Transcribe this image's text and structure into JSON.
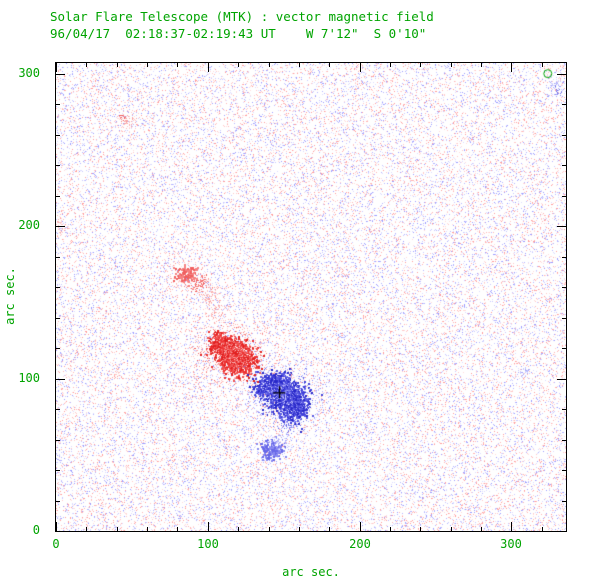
{
  "chart_data": {
    "type": "scatter",
    "title": "Solar Flare Telescope (MTK) : vector magnetic field",
    "subtitle": "96/04/17  02:18:37-02:19:43 UT    W 7'12\"  S 0'10\"",
    "xlabel": "arc sec.",
    "ylabel": "arc sec.",
    "xlim": [
      0,
      336
    ],
    "ylim": [
      0,
      307
    ],
    "xticks": [
      0,
      100,
      200,
      300
    ],
    "yticks": [
      0,
      100,
      200,
      300
    ],
    "minor_tick_interval": 20,
    "grid": false,
    "legend": "none",
    "text_color": "#00a400",
    "axis_color": "#000000",
    "seed": 19960417,
    "noise": {
      "count": 42000,
      "red_fraction": 0.5,
      "red_palette": [
        "#ffd9d9",
        "#ffc6c6",
        "#ffb2b2",
        "#ff9a9a"
      ],
      "blue_palette": [
        "#d9d9ff",
        "#c6c6ff",
        "#b2b2ff",
        "#9a9aff"
      ]
    },
    "palettes": {
      "red_strong": [
        "#e02020",
        "#ee3333",
        "#f05050"
      ],
      "red_medium": [
        "#f06060",
        "#f58282"
      ],
      "red_soft": [
        "#f8a2a2",
        "#fbc2c2"
      ],
      "blue_strong": [
        "#2828c8",
        "#4040d8",
        "#5858e0"
      ],
      "blue_medium": [
        "#6868e8",
        "#8888f0"
      ],
      "blue_soft": [
        "#a8a8f8",
        "#c6c6fb"
      ]
    },
    "clusters": [
      {
        "palette": "red_strong",
        "x": 113,
        "y": 119,
        "sx": 5,
        "sy": 4,
        "count": 500,
        "dot": 2
      },
      {
        "palette": "red_strong",
        "x": 120,
        "y": 112,
        "sx": 6,
        "sy": 5,
        "count": 600,
        "dot": 2
      },
      {
        "palette": "red_strong",
        "x": 107,
        "y": 125,
        "sx": 3,
        "sy": 3,
        "count": 120,
        "dot": 2
      },
      {
        "palette": "red_medium",
        "x": 116,
        "y": 116,
        "sx": 10,
        "sy": 8,
        "count": 350,
        "dot": 1
      },
      {
        "palette": "red_soft",
        "x": 116,
        "y": 116,
        "sx": 16,
        "sy": 12,
        "count": 300,
        "dot": 1
      },
      {
        "palette": "red_medium",
        "x": 86,
        "y": 168,
        "sx": 4,
        "sy": 3,
        "count": 110,
        "dot": 2
      },
      {
        "palette": "red_medium",
        "x": 94,
        "y": 162,
        "sx": 4,
        "sy": 3,
        "count": 90,
        "dot": 1
      },
      {
        "palette": "red_soft",
        "x": 101,
        "y": 155,
        "sx": 3,
        "sy": 4,
        "count": 70,
        "dot": 1
      },
      {
        "palette": "red_soft",
        "x": 106,
        "y": 146,
        "sx": 3,
        "sy": 4,
        "count": 50,
        "dot": 1
      },
      {
        "palette": "red_soft",
        "x": 48,
        "y": 268,
        "sx": 3,
        "sy": 2,
        "count": 45,
        "dot": 1
      },
      {
        "palette": "red_medium",
        "x": 44,
        "y": 271,
        "sx": 1.5,
        "sy": 1.5,
        "count": 20,
        "dot": 1
      },
      {
        "palette": "red_soft",
        "x": 3,
        "y": 199,
        "sx": 2,
        "sy": 3,
        "count": 35,
        "dot": 1
      },
      {
        "palette": "red_soft",
        "x": 40,
        "y": 103,
        "sx": 2,
        "sy": 2,
        "count": 18,
        "dot": 1
      },
      {
        "palette": "blue_strong",
        "x": 143,
        "y": 95,
        "sx": 6,
        "sy": 4,
        "count": 550,
        "dot": 2
      },
      {
        "palette": "blue_strong",
        "x": 151,
        "y": 88,
        "sx": 6,
        "sy": 5,
        "count": 600,
        "dot": 2
      },
      {
        "palette": "blue_strong",
        "x": 158,
        "y": 81,
        "sx": 4,
        "sy": 4,
        "count": 250,
        "dot": 2
      },
      {
        "palette": "blue_medium",
        "x": 150,
        "y": 90,
        "sx": 10,
        "sy": 8,
        "count": 350,
        "dot": 1
      },
      {
        "palette": "blue_soft",
        "x": 150,
        "y": 88,
        "sx": 15,
        "sy": 11,
        "count": 300,
        "dot": 1
      },
      {
        "palette": "blue_medium",
        "x": 153,
        "y": 73,
        "sx": 4,
        "sy": 4,
        "count": 120,
        "dot": 1
      },
      {
        "palette": "blue_medium",
        "x": 142,
        "y": 53,
        "sx": 4,
        "sy": 3,
        "count": 140,
        "dot": 2
      },
      {
        "palette": "blue_soft",
        "x": 146,
        "y": 58,
        "sx": 3,
        "sy": 3,
        "count": 70,
        "dot": 1
      },
      {
        "palette": "blue_soft",
        "x": 328,
        "y": 291,
        "sx": 3,
        "sy": 3,
        "count": 50,
        "dot": 1
      },
      {
        "palette": "blue_medium",
        "x": 331,
        "y": 289,
        "sx": 1.5,
        "sy": 1.5,
        "count": 15,
        "dot": 1
      },
      {
        "palette": "blue_soft",
        "x": 308,
        "y": 105,
        "sx": 2,
        "sy": 2,
        "count": 25,
        "dot": 1
      }
    ],
    "cross_marker": {
      "x": 147,
      "y": 91,
      "size": 6,
      "color": "#000000"
    },
    "circle_marker": {
      "x": 324,
      "y": 300,
      "radius_px": 4,
      "color": "#00a400"
    }
  }
}
